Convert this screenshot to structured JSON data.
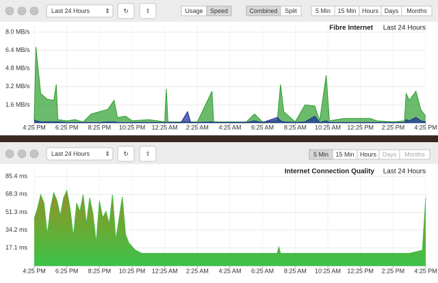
{
  "window1": {
    "toolbar": {
      "range_select": "Last 24 Hours",
      "mode_buttons": [
        "Usage",
        "Speed"
      ],
      "view_buttons": [
        "Combined",
        "Split"
      ],
      "interval_buttons": [
        "5 Min",
        "15 Min",
        "Hours",
        "Days",
        "Months"
      ]
    }
  },
  "window2": {
    "toolbar": {
      "range_select": "Last 24 Hours",
      "interval_buttons": [
        "5 Min",
        "15 Min",
        "Hours",
        "Days",
        "Months"
      ]
    }
  },
  "chart_data": [
    {
      "type": "area",
      "title": "Fibre Internet",
      "subtitle": "Last 24 Hours",
      "grid": true,
      "x": [
        0,
        0.1,
        0.4,
        0.8,
        1.2,
        1.35,
        1.45,
        2,
        2.5,
        3,
        3.5,
        4,
        4.5,
        4.9,
        5.1,
        5.6,
        6,
        7,
        8,
        8.1,
        8.2,
        9,
        9.4,
        9.6,
        10,
        10.9,
        11,
        12,
        13,
        13.5,
        14,
        14.9,
        15.1,
        15.3,
        16,
        16.6,
        17.2,
        17.5,
        17.9,
        18.1,
        19,
        20,
        20.6,
        21,
        22,
        22.7,
        22.8,
        23,
        23.4,
        23.7,
        24
      ],
      "xlim": [
        0,
        24
      ],
      "xticks": [
        {
          "value": 0,
          "label": "4:25 PM"
        },
        {
          "value": 2,
          "label": "6:25 PM"
        },
        {
          "value": 4,
          "label": "8:25 PM"
        },
        {
          "value": 6,
          "label": "10:25 PM"
        },
        {
          "value": 8,
          "label": "12:25 AM"
        },
        {
          "value": 10,
          "label": "2:25 AM"
        },
        {
          "value": 12,
          "label": "4:25 AM"
        },
        {
          "value": 14,
          "label": "6:25 AM"
        },
        {
          "value": 16,
          "label": "8:25 AM"
        },
        {
          "value": 18,
          "label": "10:25 AM"
        },
        {
          "value": 20,
          "label": "12:25 PM"
        },
        {
          "value": 22,
          "label": "2:25 PM"
        },
        {
          "value": 24,
          "label": "4:25 PM"
        }
      ],
      "ylim": [
        0,
        8.6
      ],
      "yticks": [
        {
          "value": 1.6,
          "label": "1.6 MB/s"
        },
        {
          "value": 3.2,
          "label": "3.2 MB/s"
        },
        {
          "value": 4.8,
          "label": "4.8 MB/s"
        },
        {
          "value": 6.4,
          "label": "6.4 MB/s"
        },
        {
          "value": 8.0,
          "label": "8.0 MB/s"
        }
      ],
      "series": [
        {
          "color": "#2e9e2e",
          "values": [
            0.2,
            6.7,
            2.6,
            2.1,
            2.0,
            3.4,
            0.3,
            0.2,
            0.3,
            0.1,
            0.8,
            1.0,
            1.2,
            2.0,
            0.5,
            0.6,
            0.2,
            0.3,
            0.1,
            3.0,
            0.1,
            0.1,
            0.1,
            0.1,
            0.1,
            2.8,
            0.1,
            0.1,
            0.1,
            0.8,
            0.1,
            0.2,
            3.4,
            1.0,
            0.1,
            1.6,
            1.5,
            0.2,
            4.2,
            0.2,
            0.4,
            0.4,
            0.4,
            0.2,
            0.1,
            0.2,
            2.6,
            2.0,
            2.8,
            1.2,
            0.6
          ]
        },
        {
          "color": "#1a2a9a",
          "values": [
            0.3,
            0.2,
            0.1,
            0.1,
            0.1,
            0.1,
            0.1,
            0.05,
            0.05,
            0.05,
            0.05,
            0.05,
            0.1,
            0.1,
            0.05,
            0.05,
            0.05,
            0.05,
            0.05,
            0.05,
            0.05,
            0.05,
            1.0,
            0.05,
            0.05,
            0.1,
            0.05,
            0.05,
            0.05,
            0.2,
            0.05,
            0.5,
            0.2,
            0.1,
            0.05,
            0.1,
            0.6,
            0.05,
            0.2,
            0.05,
            0.05,
            0.05,
            0.05,
            0.05,
            0.05,
            0.05,
            0.3,
            0.2,
            0.5,
            0.2,
            0.1
          ]
        }
      ]
    },
    {
      "type": "area",
      "title": "Internet Connection Quality",
      "subtitle": "Last 24 Hours",
      "grid": true,
      "x": [
        0,
        0.2,
        0.4,
        0.6,
        0.8,
        1.0,
        1.2,
        1.4,
        1.6,
        1.8,
        2.0,
        2.2,
        2.4,
        2.6,
        2.8,
        3.0,
        3.2,
        3.4,
        3.6,
        3.8,
        4.0,
        4.2,
        4.4,
        4.6,
        4.8,
        5.0,
        5.2,
        5.4,
        5.6,
        5.8,
        6.2,
        6.6,
        8,
        10,
        12,
        14,
        14.9,
        15.0,
        15.1,
        16,
        18,
        20,
        22,
        23,
        23.8,
        24
      ],
      "xlim": [
        0,
        24
      ],
      "xticks": [
        {
          "value": 0,
          "label": "4:25 PM"
        },
        {
          "value": 2,
          "label": "6:25 PM"
        },
        {
          "value": 4,
          "label": "8:25 PM"
        },
        {
          "value": 6,
          "label": "10:25 PM"
        },
        {
          "value": 8,
          "label": "12:25 AM"
        },
        {
          "value": 10,
          "label": "2:25 AM"
        },
        {
          "value": 12,
          "label": "4:25 AM"
        },
        {
          "value": 14,
          "label": "6:25 AM"
        },
        {
          "value": 16,
          "label": "8:25 AM"
        },
        {
          "value": 18,
          "label": "10:25 AM"
        },
        {
          "value": 20,
          "label": "12:25 PM"
        },
        {
          "value": 22,
          "label": "2:25 PM"
        },
        {
          "value": 24,
          "label": "4:25 PM"
        }
      ],
      "ylim": [
        0,
        94
      ],
      "yticks": [
        {
          "value": 17.1,
          "label": "17.1 ms"
        },
        {
          "value": 34.2,
          "label": "34.2 ms"
        },
        {
          "value": 51.3,
          "label": "51.3 ms"
        },
        {
          "value": 68.3,
          "label": "68.3 ms"
        },
        {
          "value": 85.4,
          "label": "85.4 ms"
        }
      ],
      "series": [
        {
          "color": "#3cbf48",
          "values": [
            45,
            55,
            68,
            60,
            30,
            55,
            70,
            62,
            48,
            65,
            72,
            55,
            28,
            60,
            52,
            68,
            40,
            65,
            50,
            22,
            62,
            46,
            52,
            40,
            68,
            25,
            45,
            66,
            30,
            22,
            15,
            12,
            12,
            12,
            12,
            12,
            12,
            18,
            12,
            12,
            12,
            12,
            12,
            12,
            15,
            65
          ]
        }
      ]
    }
  ]
}
